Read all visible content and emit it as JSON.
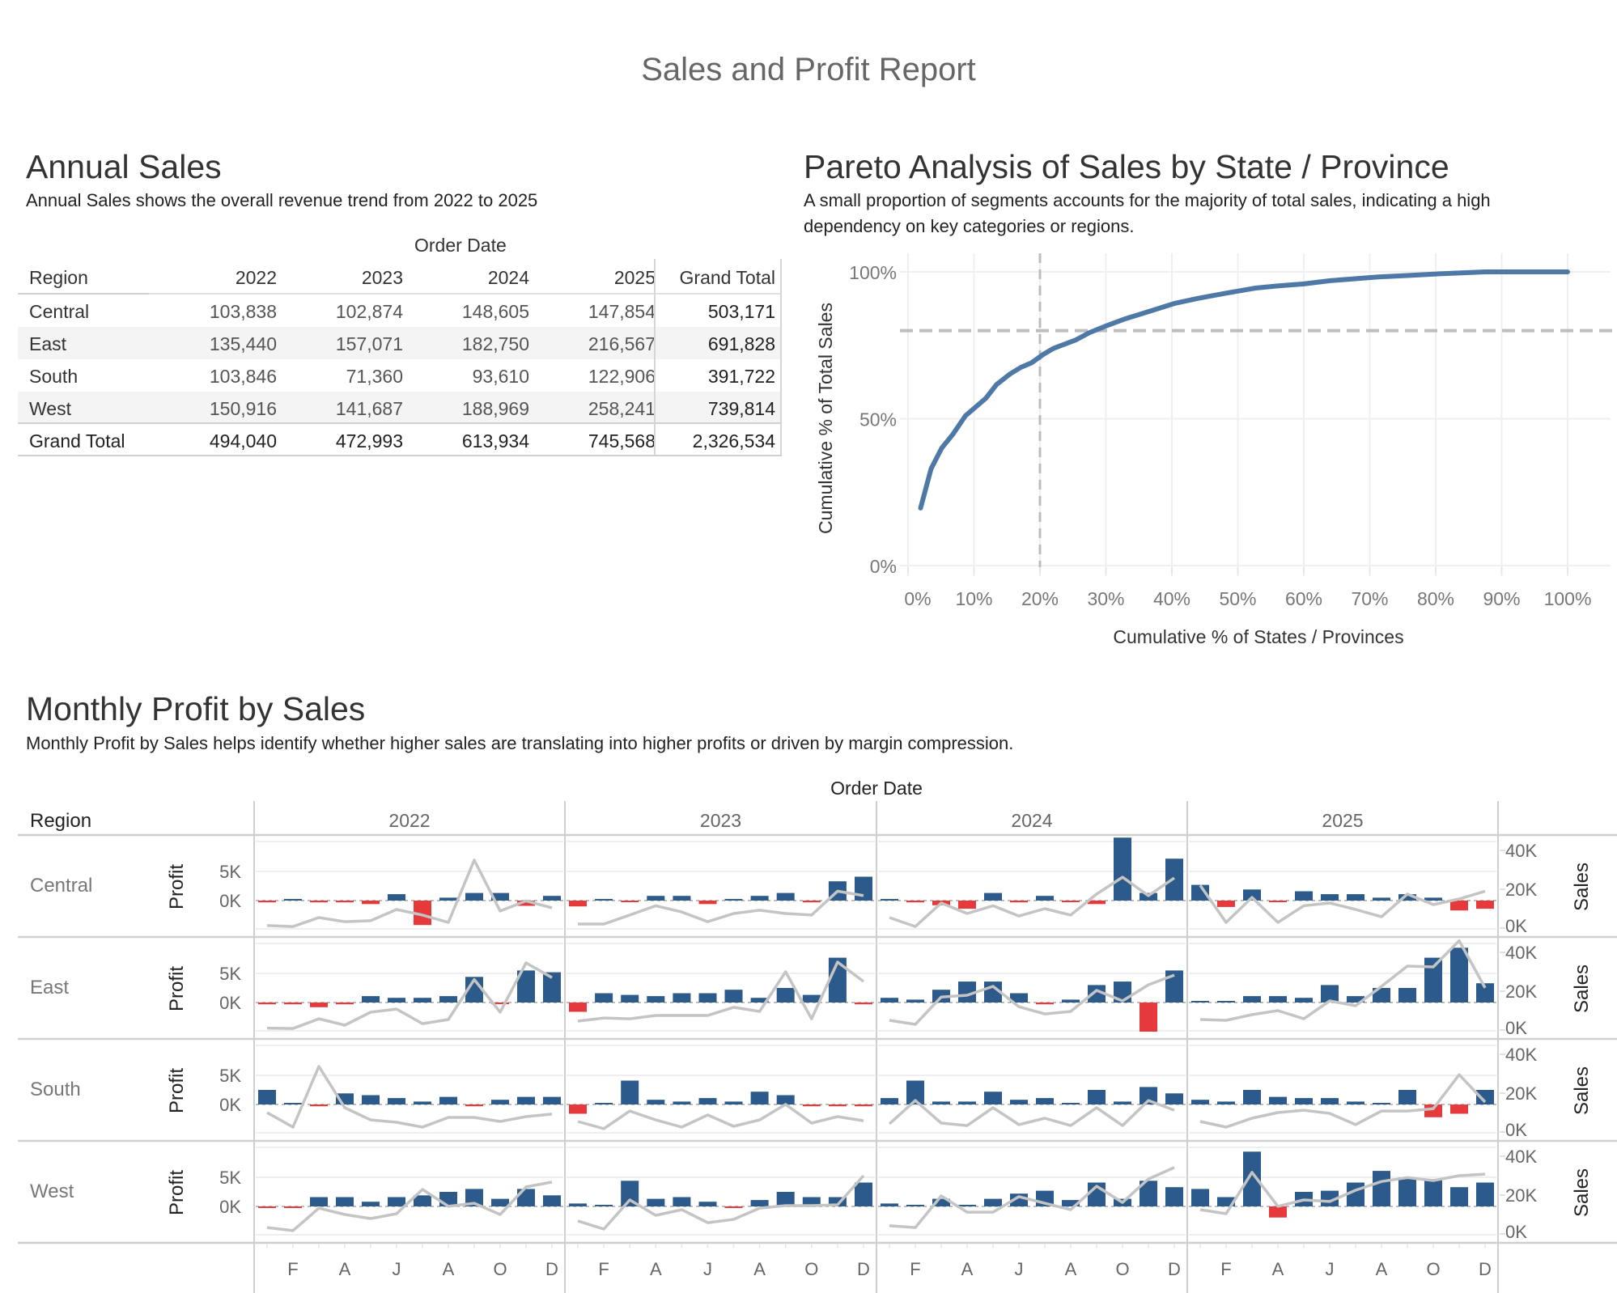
{
  "report_title": "Sales and Profit Report",
  "annual_sales": {
    "title": "Annual Sales",
    "description": "Annual Sales shows the overall revenue trend from 2022 to 2025",
    "column_group_label": "Order Date",
    "row_header": "Region",
    "years": [
      "2022",
      "2023",
      "2024",
      "2025"
    ],
    "grand_total_label": "Grand Total",
    "rows": [
      {
        "region": "Central",
        "values": [
          "103,838",
          "102,874",
          "148,605",
          "147,854"
        ],
        "total": "503,171"
      },
      {
        "region": "East",
        "values": [
          "135,440",
          "157,071",
          "182,750",
          "216,567"
        ],
        "total": "691,828"
      },
      {
        "region": "South",
        "values": [
          "103,846",
          "71,360",
          "93,610",
          "122,906"
        ],
        "total": "391,722"
      },
      {
        "region": "West",
        "values": [
          "150,916",
          "141,687",
          "188,969",
          "258,241"
        ],
        "total": "739,814"
      }
    ],
    "grand_total_row": {
      "region": "Grand Total",
      "values": [
        "494,040",
        "472,993",
        "613,934",
        "745,568"
      ],
      "total": "2,326,534"
    }
  },
  "pareto": {
    "title": "Pareto Analysis of Sales by State / Province",
    "description_line1": "A  small proportion of segments accounts for the majority of total sales, indicating a high",
    "description_line2": "dependency on key categories or regions."
  },
  "monthly": {
    "title": "Monthly Profit by Sales",
    "description": "Monthly Profit by Sales  helps identify whether higher sales are translating into higher profits or driven by margin compression.",
    "column_group_label": "Order Date",
    "row_header": "Region",
    "profit_axis_label": "Profit",
    "sales_axis_label": "Sales"
  },
  "colors": {
    "positive_bar": "#2c5a8a",
    "negative_bar": "#e5393c",
    "sales_line": "#c4c4c4",
    "pareto_line": "#4e79a7",
    "reference_line": "#bdbdbd"
  },
  "chart_data": [
    {
      "type": "table",
      "title": "Annual Sales",
      "columns": [
        "Region",
        "2022",
        "2023",
        "2024",
        "2025",
        "Grand Total"
      ],
      "rows": [
        [
          "Central",
          103838,
          102874,
          148605,
          147854,
          503171
        ],
        [
          "East",
          135440,
          157071,
          182750,
          216567,
          691828
        ],
        [
          "South",
          103846,
          71360,
          93610,
          122906,
          391722
        ],
        [
          "West",
          150916,
          141687,
          188969,
          258241,
          739814
        ],
        [
          "Grand Total",
          494040,
          472993,
          613934,
          745568,
          2326534
        ]
      ]
    },
    {
      "type": "line",
      "title": "Pareto Analysis of Sales by State / Province",
      "xlabel": "Cumulative % of States / Provinces",
      "ylabel": "Cumulative % of Total Sales",
      "xlim": [
        0,
        100
      ],
      "ylim": [
        0,
        100
      ],
      "x_ticks": [
        "0%",
        "10%",
        "20%",
        "30%",
        "40%",
        "50%",
        "60%",
        "70%",
        "80%",
        "90%",
        "100%"
      ],
      "y_ticks": [
        "0%",
        "50%",
        "100%"
      ],
      "grid": true,
      "reference_lines": {
        "x": 20,
        "y": 80
      },
      "series": [
        {
          "name": "Cumulative % of Total Sales",
          "x": [
            1.9,
            3.5,
            5.1,
            6.8,
            8.7,
            11.8,
            13.4,
            15.5,
            17.1,
            18.7,
            20.5,
            22.1,
            25.5,
            27.5,
            29.9,
            32.9,
            36.5,
            40.5,
            44,
            47.8,
            52.7,
            56,
            60,
            64,
            71.3,
            76,
            81,
            87.5,
            100
          ],
          "y": [
            19.6,
            33,
            40,
            44.7,
            51,
            57,
            61.6,
            65.3,
            67.5,
            69,
            71.9,
            74,
            76.9,
            79.3,
            81.5,
            84,
            86.5,
            89.3,
            91,
            92.6,
            94.5,
            95.2,
            95.9,
            97,
            98.3,
            98.8,
            99.4,
            100,
            100
          ]
        }
      ]
    },
    {
      "type": "bar",
      "title": "Monthly Profit by Sales",
      "subtitle": "Bars = Profit (blue positive, red negative); line = Sales",
      "years": [
        "2022",
        "2023",
        "2024",
        "2025"
      ],
      "x_tick_labels": [
        "F",
        "A",
        "J",
        "A",
        "O",
        "D"
      ],
      "months": [
        "J",
        "F",
        "M",
        "A",
        "M",
        "J",
        "J",
        "A",
        "S",
        "O",
        "N",
        "D"
      ],
      "profit_axis": {
        "label": "Profit",
        "ticks": [
          "0K",
          "5K"
        ],
        "unit": "K"
      },
      "sales_axis": {
        "label": "Sales",
        "ticks": [
          "0K",
          "20K",
          "40K"
        ],
        "unit": "K"
      },
      "regions": [
        {
          "name": "Central",
          "profit": [
            [
              -0.3,
              0.2,
              -0.3,
              -0.3,
              -0.6,
              1.1,
              -4.2,
              0.5,
              1.3,
              1.3,
              -0.9,
              0.8
            ],
            [
              -1.0,
              0.2,
              -0.2,
              0.8,
              0.8,
              -0.6,
              0.2,
              0.8,
              1.3,
              -0.3,
              3.3,
              4.1
            ],
            [
              0.2,
              -0.3,
              -0.8,
              -1.4,
              1.3,
              -0.3,
              0.8,
              -0.2,
              -0.6,
              10.8,
              1.3,
              7.2
            ],
            [
              2.7,
              -1.1,
              1.9,
              -0.2,
              1.6,
              1.1,
              1.1,
              0.5,
              1.1,
              0.5,
              -1.7,
              -1.4
            ]
          ],
          "sales": [
            [
              1.3,
              0.8,
              5.4,
              3.3,
              3.8,
              9.6,
              6.7,
              2.9,
              35.0,
              8.8,
              14.0,
              10.4
            ],
            [
              2.1,
              2.1,
              6.7,
              11.5,
              8.3,
              3.3,
              7.5,
              9.2,
              7.5,
              6.7,
              19.0,
              16.7
            ],
            [
              5.4,
              0.8,
              12.9,
              7.5,
              11.5,
              6.2,
              10.0,
              6.7,
              17.5,
              26.2,
              16.7,
              25.8
            ],
            [
              22.0,
              2.9,
              15.8,
              2.9,
              11.5,
              12.9,
              9.6,
              5.8,
              17.5,
              12.1,
              15.0,
              19.0
            ]
          ]
        },
        {
          "name": "East",
          "profit": [
            [
              -0.3,
              -0.3,
              -0.8,
              -0.3,
              1.1,
              0.8,
              0.8,
              1.1,
              4.4,
              -0.2,
              5.5,
              5.2
            ],
            [
              -1.6,
              1.6,
              1.3,
              1.1,
              1.6,
              1.6,
              2.2,
              0.8,
              2.5,
              1.3,
              7.7,
              -0.3
            ],
            [
              0.8,
              0.5,
              2.2,
              3.6,
              3.6,
              1.6,
              -0.3,
              0.5,
              3.0,
              3.6,
              -5.0,
              5.5
            ],
            [
              0.2,
              0.2,
              1.1,
              1.1,
              0.8,
              3.0,
              1.1,
              2.5,
              2.5,
              7.7,
              9.4,
              3.3
            ]
          ],
          "sales": [
            [
              1.0,
              0.8,
              5.8,
              2.5,
              9.2,
              10.8,
              3.3,
              5.4,
              26.0,
              9.2,
              34.6,
              27.0
            ],
            [
              4.6,
              6.2,
              5.8,
              7.5,
              7.5,
              7.5,
              11.7,
              9.6,
              30.0,
              5.8,
              35.0,
              25.0
            ],
            [
              5.0,
              2.9,
              17.0,
              17.9,
              22.5,
              12.0,
              8.3,
              9.6,
              20.4,
              15.0,
              23.3,
              28.3
            ],
            [
              5.4,
              5.0,
              7.9,
              10.0,
              5.8,
              15.0,
              12.5,
              22.5,
              32.9,
              32.5,
              46.0,
              21.7
            ]
          ]
        },
        {
          "name": "South",
          "profit": [
            [
              2.5,
              0.2,
              -0.3,
              1.9,
              1.6,
              1.1,
              0.5,
              1.3,
              -0.3,
              0.8,
              1.3,
              1.3
            ],
            [
              -1.6,
              0.2,
              4.1,
              0.8,
              0.5,
              1.1,
              0.5,
              2.2,
              1.6,
              -0.3,
              -0.3,
              -0.3
            ],
            [
              1.1,
              4.1,
              0.5,
              0.5,
              2.2,
              0.8,
              1.1,
              0.2,
              2.5,
              0.5,
              3.0,
              1.9
            ],
            [
              0.8,
              0.5,
              2.5,
              1.3,
              1.1,
              1.1,
              0.5,
              0.2,
              2.5,
              -2.2,
              -1.6,
              2.5
            ]
          ],
          "sales": [
            [
              10.0,
              2.5,
              33.8,
              12.5,
              6.2,
              5.0,
              2.5,
              7.5,
              7.5,
              5.4,
              7.9,
              9.2
            ],
            [
              5.4,
              1.7,
              10.8,
              6.2,
              2.5,
              8.8,
              2.9,
              6.2,
              14.2,
              4.6,
              7.9,
              5.8
            ],
            [
              4.2,
              16.2,
              4.6,
              3.3,
              12.5,
              3.8,
              7.1,
              3.3,
              12.5,
              3.3,
              16.2,
              11.2
            ],
            [
              5.4,
              2.5,
              7.1,
              10.0,
              11.2,
              9.6,
              3.8,
              10.8,
              10.8,
              12.0,
              29.5,
              15.4
            ]
          ]
        },
        {
          "name": "West",
          "profit": [
            [
              -0.2,
              -0.2,
              1.6,
              1.6,
              0.8,
              1.6,
              1.9,
              2.5,
              3.0,
              1.3,
              3.0,
              1.9
            ],
            [
              0.5,
              0.2,
              4.4,
              1.3,
              1.6,
              0.8,
              -0.2,
              1.1,
              2.5,
              1.6,
              1.6,
              4.1
            ],
            [
              0.5,
              0.2,
              1.3,
              0.2,
              1.3,
              2.2,
              2.7,
              1.1,
              4.1,
              1.3,
              4.4,
              3.3
            ],
            [
              3.0,
              1.6,
              9.4,
              -1.9,
              2.5,
              2.7,
              4.1,
              6.1,
              5.0,
              4.7,
              3.3,
              4.1
            ]
          ],
          "sales": [
            [
              3.3,
              1.7,
              13.3,
              10.0,
              7.9,
              10.4,
              22.9,
              14.2,
              15.8,
              10.0,
              24.2,
              26.7
            ],
            [
              6.7,
              2.5,
              17.5,
              9.6,
              12.5,
              5.8,
              7.5,
              13.3,
              14.6,
              14.6,
              15.0,
              30.0
            ],
            [
              4.2,
              3.3,
              19.6,
              11.2,
              11.2,
              19.2,
              15.8,
              12.5,
              24.6,
              16.2,
              28.3,
              34.2
            ],
            [
              12.5,
              10.4,
              31.7,
              14.2,
              17.5,
              16.7,
              22.5,
              27.0,
              29.0,
              27.5,
              30.0,
              30.8
            ]
          ]
        }
      ]
    }
  ]
}
